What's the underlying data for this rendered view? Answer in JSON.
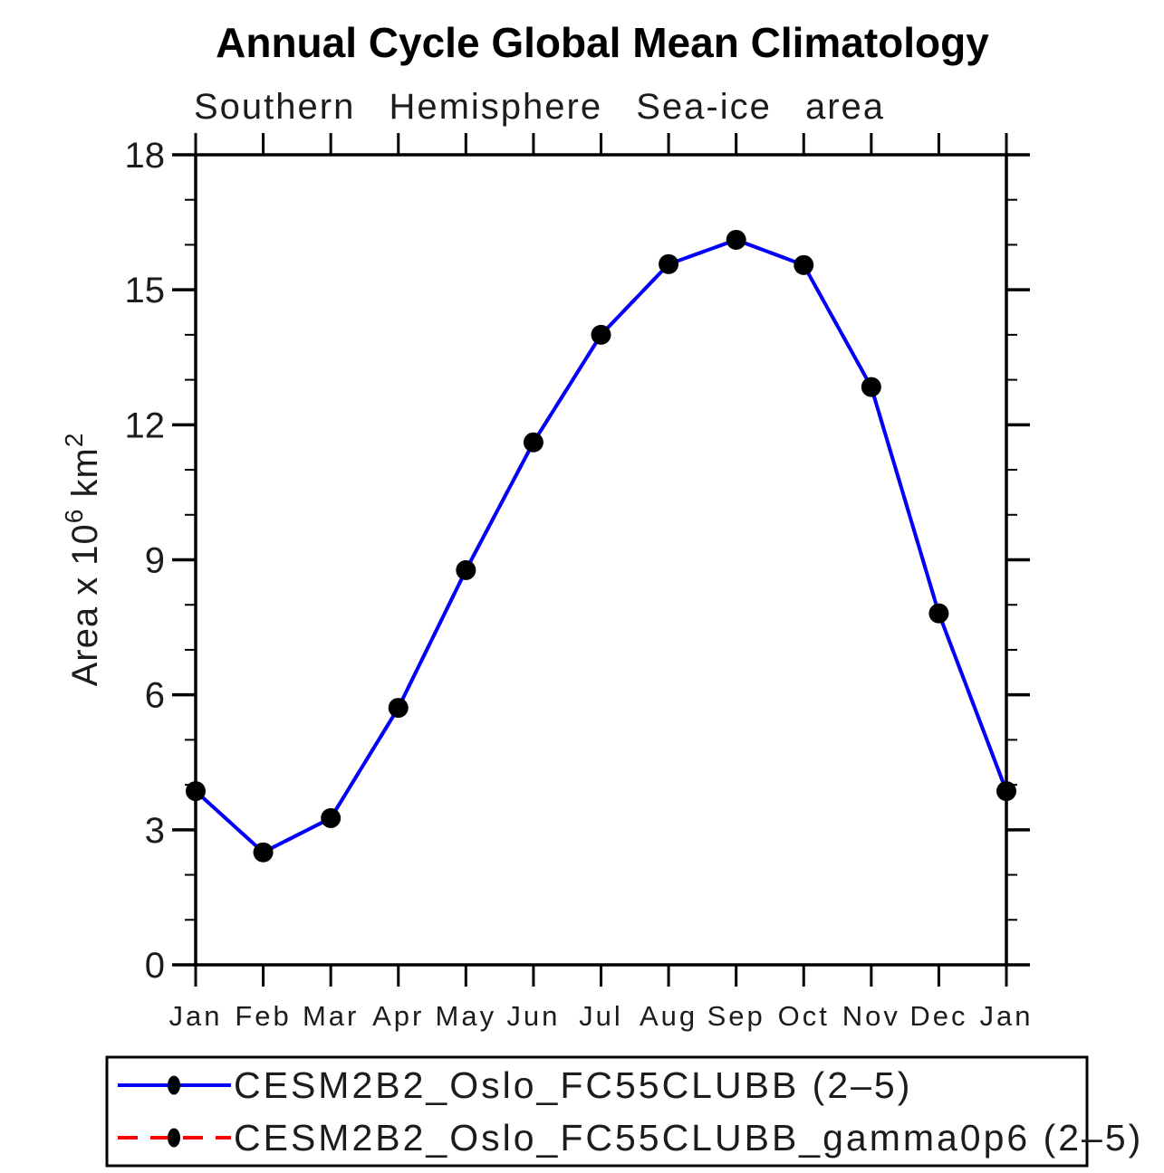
{
  "chart_data": {
    "type": "line",
    "title": "Annual Cycle Global Mean Climatology",
    "subtitle": "Southern Hemisphere Sea-ice area",
    "xlabel": "",
    "ylabel": "Area x 10^6 km^2",
    "ylabel_parts": {
      "base": "Area x 10",
      "sup1": "6",
      "mid": " km",
      "sup2": "2"
    },
    "categories": [
      "Jan",
      "Feb",
      "Mar",
      "Apr",
      "May",
      "Jun",
      "Jul",
      "Aug",
      "Sep",
      "Oct",
      "Nov",
      "Dec",
      "Jan"
    ],
    "series": [
      {
        "name": "CESM2B2_Oslo_FC55CLUBB (2–5)",
        "color": "#0000ff",
        "line_style": "solid",
        "marker": "filled-circle",
        "marker_color": "#000000",
        "values": [
          3.86,
          2.5,
          3.26,
          5.71,
          8.77,
          11.61,
          14.0,
          15.57,
          16.11,
          15.55,
          12.84,
          7.81,
          3.86
        ]
      },
      {
        "name": "CESM2B2_Oslo_FC55CLUBB_gamma0p6 (2–5)",
        "color": "#ff0000",
        "line_style": "dashed",
        "marker": "filled-circle",
        "marker_color": "#000000",
        "values": [
          3.86,
          2.5,
          3.26,
          5.71,
          8.77,
          11.61,
          14.0,
          15.57,
          16.11,
          15.55,
          12.84,
          7.81,
          3.86
        ],
        "note": "curve coincides with first series and is hidden beneath it"
      }
    ],
    "ylim": [
      0,
      18
    ],
    "ytick_major": [
      0,
      3,
      6,
      9,
      12,
      15,
      18
    ],
    "ytick_minor_step": 1,
    "grid": false,
    "legend_position": "bottom",
    "axis_color": "#000000",
    "text_color": "#1c1c1c",
    "tick_direction": "outward"
  }
}
